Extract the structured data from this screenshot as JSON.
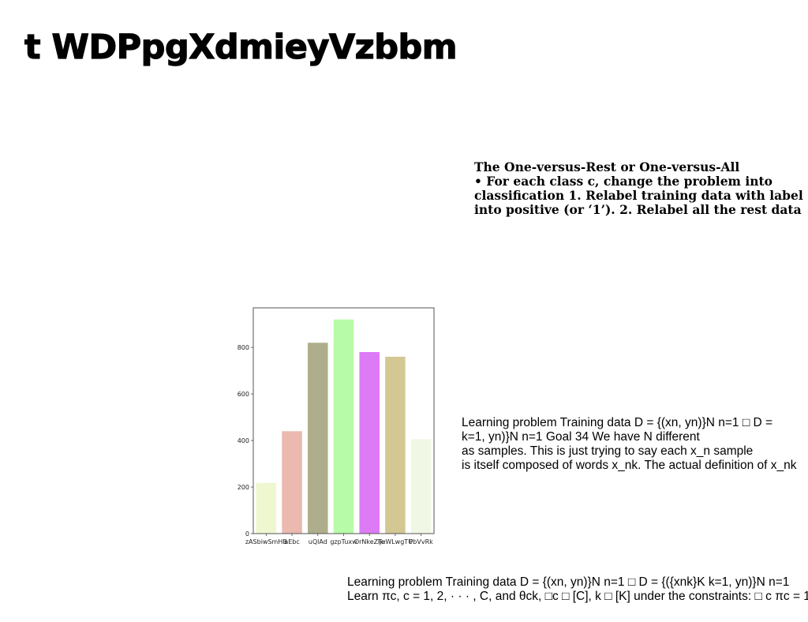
{
  "page": {
    "title": "t WDPpgXdmieyVzbbm"
  },
  "blocks": {
    "one_vs_rest": {
      "lines": [
        "The One-versus-Rest or One-versus-All",
        "• For each class c, change the problem into",
        "classification 1. Relabel training data with label",
        "into positive (or ‘1’). 2. Relabel all the rest data"
      ]
    },
    "learning_problem_1": {
      "lines": [
        "Learning problem Training data D = {(xn, yn)}N n=1 □ D =",
        "k=1, yn)}N n=1 Goal 34 We have N different",
        "as samples. This is just trying to say each x_n sample",
        "is itself composed of words x_nk. The actual definition of x_nk"
      ]
    },
    "learning_problem_2": {
      "lines": [
        "Learning problem Training data D = {(xn, yn)}N n=1 □ D = {({xnk}K k=1, yn)}N n=1",
        "Learn πc, c = 1, 2, · · · , C, and θck, □c □ [C], k □ [K] under the constraints: □ c πc = 1"
      ]
    }
  },
  "chart_data": {
    "type": "bar",
    "categories": [
      "zASbiwSmHB",
      "aEbc",
      "uQlAd",
      "gzpTuxw",
      "OrNkeZTe",
      "ljuWLwgTU",
      "PbVvRk"
    ],
    "values": [
      218,
      440,
      820,
      920,
      780,
      760,
      405
    ],
    "colors": [
      "#eef7cf",
      "#ebb9b0",
      "#afae8c",
      "#b7fba8",
      "#dc7bf5",
      "#d3c794",
      "#f0f7e4"
    ],
    "title": "",
    "xlabel": "",
    "ylabel": "",
    "ylim": [
      0,
      970
    ],
    "yticks": [
      0,
      200,
      400,
      600,
      800
    ],
    "grid": false
  }
}
